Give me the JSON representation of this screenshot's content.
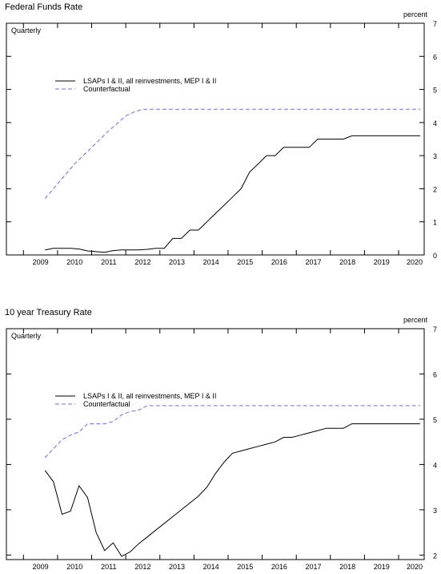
{
  "chart_data": [
    {
      "type": "line",
      "title": "Federal Funds Rate",
      "frequency_label": "Quarterly",
      "ylabel": "percent",
      "ylim": [
        0,
        7
      ],
      "yticks": [
        0,
        1,
        2,
        3,
        4,
        5,
        6,
        7
      ],
      "xlim": [
        2008.5,
        2020.75
      ],
      "xtick_labels": [
        "2009",
        "2010",
        "2011",
        "2012",
        "2013",
        "2014",
        "2015",
        "2016",
        "2017",
        "2018",
        "2019",
        "2020"
      ],
      "legend_position": "upper-left",
      "series": [
        {
          "name": "LSAPs I & II, all reinvestments, MEP I & II",
          "style": "solid",
          "color": "#000000",
          "x": [
            2009.63,
            2009.88,
            2010.13,
            2010.38,
            2010.63,
            2010.88,
            2011.13,
            2011.38,
            2011.63,
            2011.88,
            2012.13,
            2012.38,
            2012.63,
            2012.88,
            2013.13,
            2013.38,
            2013.63,
            2013.88,
            2014.13,
            2014.38,
            2014.63,
            2014.88,
            2015.13,
            2015.38,
            2015.63,
            2015.88,
            2016.13,
            2016.38,
            2016.63,
            2016.88,
            2017.13,
            2017.38,
            2017.63,
            2017.88,
            2018.13,
            2018.38,
            2018.63,
            2018.88,
            2019.13,
            2019.38,
            2019.63,
            2019.88,
            2020.13,
            2020.38,
            2020.63
          ],
          "values": [
            0.15,
            0.2,
            0.2,
            0.2,
            0.18,
            0.12,
            0.1,
            0.08,
            0.13,
            0.15,
            0.15,
            0.15,
            0.17,
            0.2,
            0.2,
            0.5,
            0.5,
            0.75,
            0.75,
            1.0,
            1.25,
            1.5,
            1.75,
            2.0,
            2.5,
            2.75,
            3.0,
            3.0,
            3.25,
            3.25,
            3.25,
            3.25,
            3.5,
            3.5,
            3.5,
            3.5,
            3.6,
            3.6,
            3.6,
            3.6,
            3.6,
            3.6,
            3.6,
            3.6,
            3.6
          ]
        },
        {
          "name": "Counterfactual",
          "style": "dashed",
          "color": "#6a6aff",
          "x": [
            2009.63,
            2010.0,
            2010.5,
            2011.0,
            2011.5,
            2012.0,
            2012.25,
            2012.5,
            2012.63,
            2013.0,
            2014.0,
            2015.0,
            2016.0,
            2017.0,
            2018.0,
            2019.0,
            2020.0,
            2020.63
          ],
          "values": [
            1.7,
            2.15,
            2.75,
            3.25,
            3.75,
            4.2,
            4.32,
            4.4,
            4.4,
            4.4,
            4.4,
            4.4,
            4.4,
            4.4,
            4.4,
            4.4,
            4.4,
            4.4
          ]
        }
      ]
    },
    {
      "type": "line",
      "title": "10 year Treasury Rate",
      "frequency_label": "Quarterly",
      "ylabel": "percent",
      "ylim": [
        1.9,
        7
      ],
      "yticks": [
        2,
        3,
        4,
        5,
        6,
        7
      ],
      "xlim": [
        2008.5,
        2020.75
      ],
      "xtick_labels": [
        "2009",
        "2010",
        "2011",
        "2012",
        "2013",
        "2014",
        "2015",
        "2016",
        "2017",
        "2018",
        "2019",
        "2020"
      ],
      "legend_position": "upper-left",
      "series": [
        {
          "name": "LSAPs I & II, all reinvestments, MEP I & II",
          "style": "solid",
          "color": "#000000",
          "x": [
            2009.63,
            2009.88,
            2010.13,
            2010.38,
            2010.63,
            2010.88,
            2011.13,
            2011.38,
            2011.63,
            2011.88,
            2012.13,
            2012.38,
            2012.63,
            2012.88,
            2013.13,
            2013.38,
            2013.63,
            2013.88,
            2014.13,
            2014.38,
            2014.63,
            2014.88,
            2015.13,
            2015.38,
            2015.63,
            2015.88,
            2016.13,
            2016.38,
            2016.63,
            2016.88,
            2017.13,
            2017.38,
            2017.63,
            2017.88,
            2018.13,
            2018.38,
            2018.63,
            2018.88,
            2019.13,
            2019.38,
            2019.63,
            2019.88,
            2020.13,
            2020.38,
            2020.63
          ],
          "values": [
            3.87,
            3.62,
            2.9,
            2.97,
            3.53,
            3.27,
            2.5,
            2.1,
            2.27,
            1.97,
            2.07,
            2.25,
            2.4,
            2.55,
            2.7,
            2.85,
            3.0,
            3.15,
            3.3,
            3.5,
            3.8,
            4.05,
            4.25,
            4.3,
            4.35,
            4.4,
            4.45,
            4.5,
            4.6,
            4.6,
            4.65,
            4.7,
            4.75,
            4.8,
            4.8,
            4.8,
            4.9,
            4.9,
            4.9,
            4.9,
            4.9,
            4.9,
            4.9,
            4.9,
            4.9
          ]
        },
        {
          "name": "Counterfactual",
          "style": "dashed",
          "color": "#6a6aff",
          "x": [
            2009.63,
            2009.88,
            2010.13,
            2010.38,
            2010.63,
            2010.88,
            2011.13,
            2011.38,
            2011.63,
            2011.88,
            2012.13,
            2012.38,
            2012.63,
            2013.0,
            2014.0,
            2015.0,
            2016.0,
            2017.0,
            2018.0,
            2019.0,
            2020.0,
            2020.63
          ],
          "values": [
            4.15,
            4.35,
            4.55,
            4.65,
            4.72,
            4.9,
            4.9,
            4.9,
            4.95,
            5.1,
            5.17,
            5.2,
            5.3,
            5.3,
            5.3,
            5.3,
            5.3,
            5.3,
            5.3,
            5.3,
            5.3,
            5.3
          ]
        }
      ]
    }
  ]
}
